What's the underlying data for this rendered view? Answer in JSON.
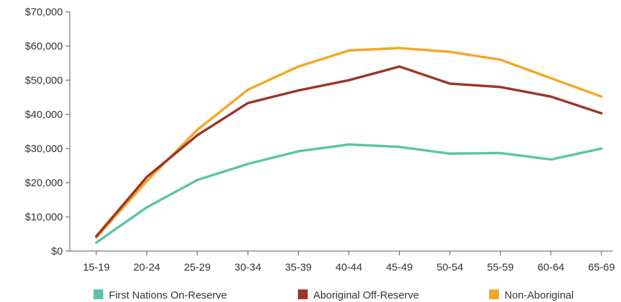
{
  "chart_data": {
    "type": "line",
    "title": "",
    "xlabel": "",
    "ylabel": "",
    "categories": [
      "15-19",
      "20-24",
      "25-29",
      "30-34",
      "35-39",
      "40-44",
      "45-49",
      "50-54",
      "55-59",
      "60-64",
      "65-69"
    ],
    "ylim": [
      0,
      70000
    ],
    "yticks": [
      0,
      10000,
      20000,
      30000,
      40000,
      50000,
      60000,
      70000
    ],
    "ytick_labels": [
      "$0",
      "$10,000",
      "$20,000",
      "$30,000",
      "$40,000",
      "$50,000",
      "$60,000",
      "$70,000"
    ],
    "grid": false,
    "legend_position": "bottom",
    "series": [
      {
        "name": "First Nations On-Reserve",
        "color": "#5bc4a8",
        "values": [
          2500,
          12800,
          20800,
          25500,
          29200,
          31200,
          30500,
          28500,
          28700,
          26800,
          30000
        ]
      },
      {
        "name": "Aboriginal Off-Reserve",
        "color": "#9e3326",
        "values": [
          4300,
          21700,
          33900,
          43300,
          47000,
          50000,
          54000,
          49000,
          48000,
          45200,
          40300
        ]
      },
      {
        "name": "Non-Aboriginal",
        "color": "#f5a623",
        "values": [
          4000,
          20500,
          35500,
          47200,
          54000,
          58700,
          59400,
          58300,
          56000,
          50600,
          45200
        ]
      }
    ]
  }
}
